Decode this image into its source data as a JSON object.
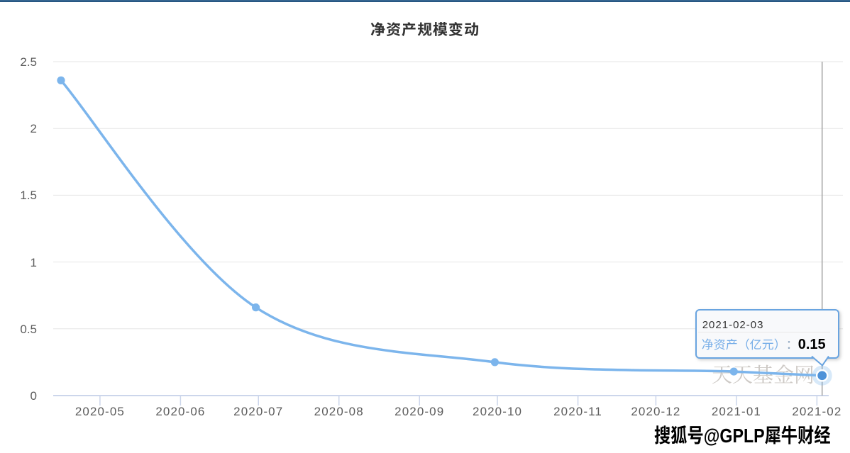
{
  "page": {
    "background": "#ffffff"
  },
  "top_bar": {
    "color_top": "#3c6c97",
    "color_bottom": "#1f4e7c"
  },
  "chart_data": {
    "type": "line",
    "title": "净资产规模变动",
    "xlabel": "",
    "ylabel": "",
    "legend_position": "none",
    "grid": true,
    "xlim": [
      "2020-04-13",
      "2021-02-11"
    ],
    "ylim": [
      0,
      2.5
    ],
    "series": [
      {
        "name": "净资产（亿元）",
        "x": [
          "2020-04-16",
          "2020-06-30",
          "2020-09-30",
          "2020-12-31",
          "2021-02-03"
        ],
        "values": [
          2.36,
          0.66,
          0.25,
          0.18,
          0.15
        ]
      }
    ],
    "x_ticks": [
      {
        "date": "2020-05-01",
        "label": "2020-05"
      },
      {
        "date": "2020-06-01",
        "label": "2020-06"
      },
      {
        "date": "2020-07-01",
        "label": "2020-07"
      },
      {
        "date": "2020-08-01",
        "label": "2020-08"
      },
      {
        "date": "2020-09-01",
        "label": "2020-09"
      },
      {
        "date": "2020-10-01",
        "label": "2020-10"
      },
      {
        "date": "2020-11-01",
        "label": "2020-11"
      },
      {
        "date": "2020-12-01",
        "label": "2020-12"
      },
      {
        "date": "2021-01-01",
        "label": "2021-01"
      },
      {
        "date": "2021-02-01",
        "label": "2021-02"
      }
    ],
    "y_ticks": [
      {
        "value": 0,
        "label": "0"
      },
      {
        "value": 0.5,
        "label": "0.5"
      },
      {
        "value": 1,
        "label": "1"
      },
      {
        "value": 1.5,
        "label": "1.5"
      },
      {
        "value": 2,
        "label": "2"
      },
      {
        "value": 2.5,
        "label": "2.5"
      }
    ],
    "hovered_point_index": 4,
    "colors": {
      "line": "#7cb5ec",
      "marker": "#7cb5ec",
      "hover_marker": "#4e92d8",
      "halo": "#7cb5ec",
      "grid": "#e6e6e6",
      "axis": "#ccd6eb",
      "crosshair": "#a9a9a9",
      "axis_label": "#5c5c5c",
      "title": "#333333"
    }
  },
  "tooltip": {
    "date": "2021-02-03",
    "label": "净资产（亿元）",
    "colon": "：",
    "value": "0.15",
    "background": "#f8f9fb",
    "border_color": "#69a4e0",
    "label_color": "#77aee8",
    "date_color": "#333333",
    "value_color": "#000000"
  },
  "watermark": {
    "text": "天天基金网",
    "color": "#cdc9c5"
  },
  "footer": {
    "text": "搜狐号@GPLP犀牛财经",
    "color": "#000000"
  }
}
